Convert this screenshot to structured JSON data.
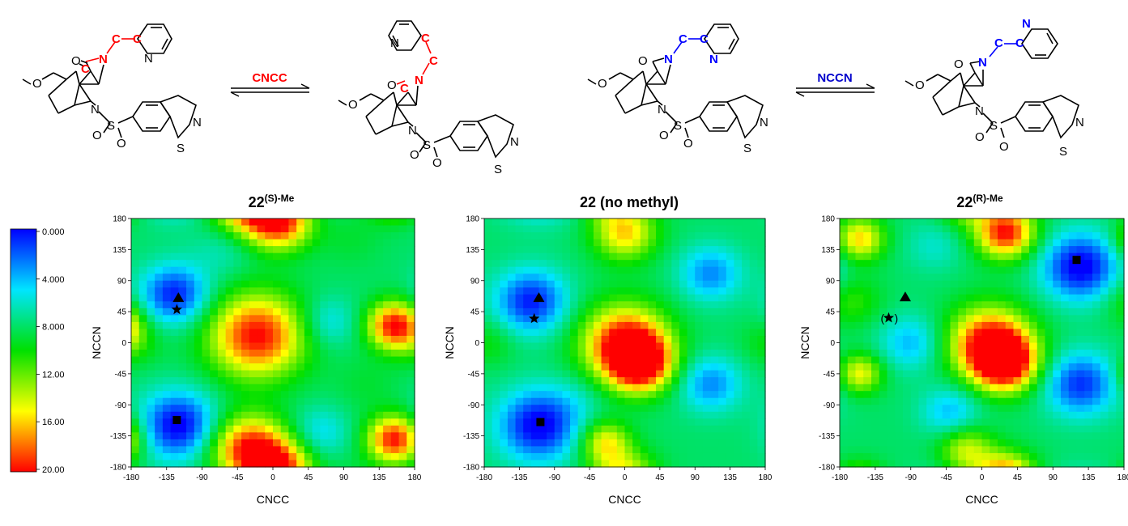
{
  "schemes": [
    {
      "label": "CNCC",
      "label_color": "#ff0000",
      "highlight_color": "#ff0000",
      "left_atoms": [
        "C",
        "C",
        "N",
        "C",
        "C",
        "N"
      ],
      "right_atoms": [
        "C",
        "C",
        "N",
        "C",
        "C",
        "N"
      ]
    },
    {
      "label": "NCCN",
      "label_color": "#0000cc",
      "highlight_color": "#0000ff",
      "left_atoms": [
        "C",
        "C",
        "N",
        "C",
        "C",
        "N"
      ],
      "right_atoms": [
        "C",
        "C",
        "N",
        "C",
        "C",
        "N"
      ]
    }
  ],
  "molecule_labels": {
    "oxygen": "O",
    "carbonyl_o": "O",
    "amide_n": "N",
    "sulfonamide_n": "N",
    "sulfur": "S",
    "sulfonyl_o1": "O",
    "sulfonyl_o2": "O",
    "thiazole_n": "N",
    "thiazole_s": "S",
    "pyridine_n": "N"
  },
  "colorbar": {
    "ticks": [
      "0.000",
      "4.000",
      "8.000",
      "12.00",
      "16.00",
      "20.00"
    ],
    "min": 0,
    "max": 20,
    "colors": [
      "#0000ff",
      "#00e5ff",
      "#00e000",
      "#ffff00",
      "#ff0000"
    ]
  },
  "chart_data": [
    {
      "type": "heatmap",
      "title_main": "22",
      "title_sup": "(S)-Me",
      "xlabel": "CNCC",
      "ylabel": "NCCN",
      "xlim": [
        -180,
        180
      ],
      "ylim": [
        -180,
        180
      ],
      "xticks": [
        "-180",
        "-135",
        "-90",
        "-45",
        "0",
        "45",
        "90",
        "135",
        "180"
      ],
      "yticks": [
        "180",
        "135",
        "90",
        "45",
        "0",
        "-45",
        "-90",
        "-135",
        "-180"
      ],
      "markers": [
        {
          "shape": "triangle",
          "x": -120,
          "y": 65,
          "label": ""
        },
        {
          "shape": "star",
          "x": -122,
          "y": 48,
          "label": ""
        },
        {
          "shape": "square",
          "x": -122,
          "y": -112,
          "label": ""
        }
      ],
      "blobs": [
        {
          "x": -125,
          "y": 70,
          "v": 0.5,
          "s": 30
        },
        {
          "x": -120,
          "y": -120,
          "v": -0.5,
          "s": 34
        },
        {
          "x": -20,
          "y": 10,
          "v": 20,
          "s": 42
        },
        {
          "x": -30,
          "y": -155,
          "v": 20,
          "s": 34
        },
        {
          "x": 10,
          "y": 175,
          "v": 18,
          "s": 28
        },
        {
          "x": 155,
          "y": 25,
          "v": 20,
          "s": 24
        },
        {
          "x": 155,
          "y": -140,
          "v": 20,
          "s": 24
        },
        {
          "x": -175,
          "y": 0,
          "v": 10,
          "s": 24
        },
        {
          "x": 70,
          "y": 30,
          "v": 5,
          "s": 26
        },
        {
          "x": 60,
          "y": -130,
          "v": 5,
          "s": 26
        },
        {
          "x": -60,
          "y": 140,
          "v": 6,
          "s": 28
        },
        {
          "x": 100,
          "y": 150,
          "v": 9,
          "s": 28
        },
        {
          "x": 120,
          "y": -60,
          "v": 9,
          "s": 28
        }
      ]
    },
    {
      "type": "heatmap",
      "title_main": "22 (no methyl)",
      "title_sup": "",
      "xlabel": "CNCC",
      "ylabel": "NCCN",
      "xlim": [
        -180,
        180
      ],
      "ylim": [
        -180,
        180
      ],
      "xticks": [
        "-180",
        "-135",
        "-90",
        "-45",
        "0",
        "45",
        "90",
        "135",
        "180"
      ],
      "yticks": [
        "180",
        "135",
        "90",
        "45",
        "0",
        "-45",
        "-90",
        "-135",
        "-180"
      ],
      "markers": [
        {
          "shape": "triangle",
          "x": -110,
          "y": 65,
          "label": ""
        },
        {
          "shape": "star",
          "x": -116,
          "y": 35,
          "label": ""
        },
        {
          "shape": "square",
          "x": -108,
          "y": -115,
          "label": ""
        }
      ],
      "blobs": [
        {
          "x": -120,
          "y": 60,
          "v": 0.5,
          "s": 32
        },
        {
          "x": -110,
          "y": -120,
          "v": -0.5,
          "s": 36
        },
        {
          "x": 0,
          "y": 0,
          "v": 20,
          "s": 38
        },
        {
          "x": 20,
          "y": -30,
          "v": 20,
          "s": 28
        },
        {
          "x": 0,
          "y": 160,
          "v": 16,
          "s": 28
        },
        {
          "x": -25,
          "y": -145,
          "v": 15,
          "s": 22
        },
        {
          "x": -175,
          "y": 0,
          "v": 10,
          "s": 24
        },
        {
          "x": 170,
          "y": 0,
          "v": 8,
          "s": 22
        },
        {
          "x": 110,
          "y": -60,
          "v": 3,
          "s": 28
        },
        {
          "x": 110,
          "y": 100,
          "v": 3,
          "s": 28
        },
        {
          "x": -60,
          "y": -80,
          "v": 7,
          "s": 26
        },
        {
          "x": 150,
          "y": -150,
          "v": 8,
          "s": 20
        }
      ]
    },
    {
      "type": "heatmap",
      "title_main": "22",
      "title_sup": "(R)-Me",
      "xlabel": "CNCC",
      "ylabel": "NCCN",
      "xlim": [
        -180,
        180
      ],
      "ylim": [
        -180,
        180
      ],
      "xticks": [
        "-180",
        "-135",
        "-90",
        "-45",
        "0",
        "45",
        "90",
        "135",
        "180"
      ],
      "yticks": [
        "180",
        "135",
        "90",
        "45",
        "0",
        "-45",
        "-90",
        "-135",
        "-180"
      ],
      "markers": [
        {
          "shape": "triangle",
          "x": -97,
          "y": 66,
          "label": ""
        },
        {
          "shape": "star",
          "x": -118,
          "y": 36,
          "label": "()"
        },
        {
          "shape": "square",
          "x": 120,
          "y": 120,
          "label": ""
        }
      ],
      "blobs": [
        {
          "x": 125,
          "y": 110,
          "v": -0.5,
          "s": 34
        },
        {
          "x": 125,
          "y": -60,
          "v": 1,
          "s": 32
        },
        {
          "x": -90,
          "y": 0,
          "v": 4,
          "s": 28
        },
        {
          "x": -40,
          "y": -100,
          "v": 4,
          "s": 26
        },
        {
          "x": 10,
          "y": 0,
          "v": 20,
          "s": 36
        },
        {
          "x": 30,
          "y": -30,
          "v": 20,
          "s": 28
        },
        {
          "x": 30,
          "y": 160,
          "v": 20,
          "s": 26
        },
        {
          "x": -155,
          "y": 150,
          "v": 16,
          "s": 22
        },
        {
          "x": -155,
          "y": -45,
          "v": 15,
          "s": 20
        },
        {
          "x": -20,
          "y": -155,
          "v": 14,
          "s": 24
        },
        {
          "x": -165,
          "y": 60,
          "v": 11,
          "s": 26
        },
        {
          "x": 60,
          "y": -120,
          "v": 8,
          "s": 26
        },
        {
          "x": -60,
          "y": 140,
          "v": 6,
          "s": 26
        }
      ]
    }
  ]
}
